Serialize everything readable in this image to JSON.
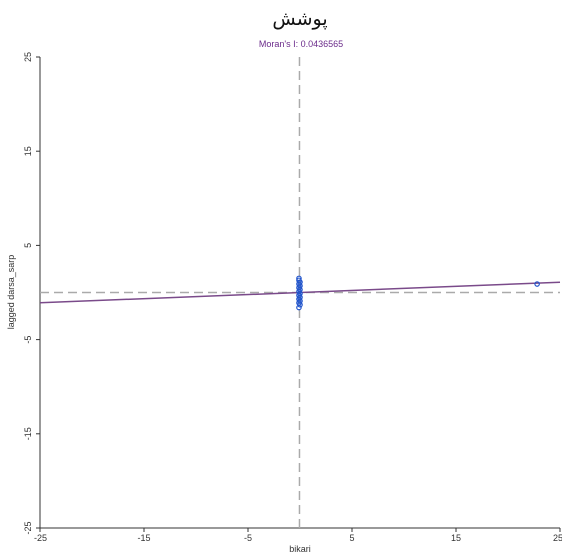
{
  "chart_data": {
    "type": "scatter",
    "title": "پوشش",
    "subtitle": "Moran's I: 0.0436565",
    "xlabel": "bikari",
    "ylabel": "lagged darsa_sarp",
    "xlim": [
      -25,
      25
    ],
    "ylim": [
      -25,
      25
    ],
    "x_ticks": [
      -25,
      -15,
      -5,
      5,
      15,
      25
    ],
    "y_ticks": [
      -25,
      -15,
      -5,
      5,
      15,
      25
    ],
    "x_tick_labels": [
      "-25",
      "-15",
      "-5",
      "5",
      "15",
      "25"
    ],
    "y_tick_labels": [
      "-25",
      "-15",
      "-5",
      "5",
      "15",
      "25"
    ],
    "reference_lines": {
      "x_mean": -0.05,
      "y_mean": 0.0
    },
    "regression": {
      "slope": 0.0436565,
      "intercept": 0.0
    },
    "points": [
      {
        "x": -0.1,
        "y": 1.5
      },
      {
        "x": -0.1,
        "y": 1.3
      },
      {
        "x": 0.0,
        "y": 1.1
      },
      {
        "x": -0.1,
        "y": 0.9
      },
      {
        "x": 0.0,
        "y": 0.7
      },
      {
        "x": -0.1,
        "y": 0.5
      },
      {
        "x": 0.0,
        "y": 0.3
      },
      {
        "x": -0.1,
        "y": 0.1
      },
      {
        "x": 0.0,
        "y": -0.1
      },
      {
        "x": -0.1,
        "y": -0.3
      },
      {
        "x": 0.0,
        "y": -0.5
      },
      {
        "x": -0.1,
        "y": -0.7
      },
      {
        "x": 0.0,
        "y": -0.9
      },
      {
        "x": -0.1,
        "y": -1.1
      },
      {
        "x": 0.0,
        "y": -1.3
      },
      {
        "x": -0.1,
        "y": -1.6
      },
      {
        "x": 22.8,
        "y": 0.9
      }
    ],
    "grid": false,
    "colors": {
      "points": "#2255cc",
      "regression": "#7a4a8a",
      "reference": "#aaaaaa",
      "subtitle": "#6a2a8a",
      "axis": "#333333"
    }
  }
}
